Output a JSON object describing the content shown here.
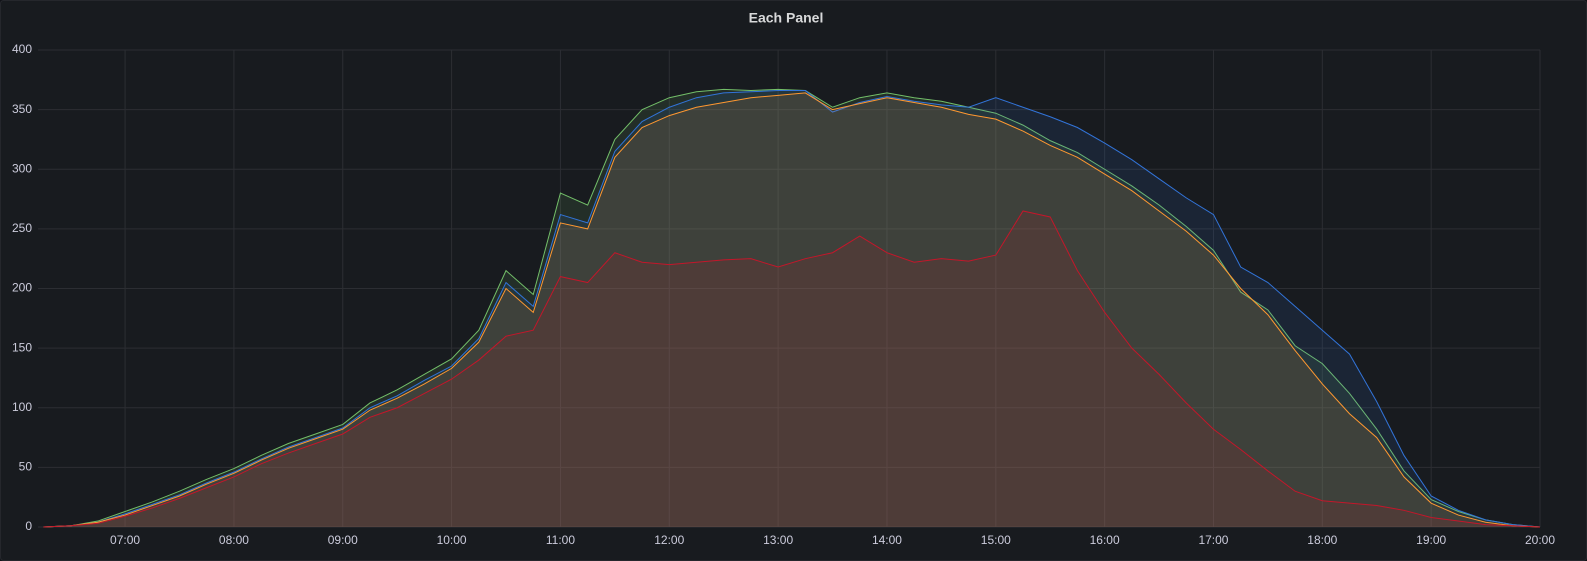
{
  "chart_data": {
    "type": "area",
    "title": "Each Panel",
    "x": [
      "06:15",
      "06:30",
      "06:45",
      "07:00",
      "07:15",
      "07:30",
      "07:45",
      "08:00",
      "08:15",
      "08:30",
      "08:45",
      "09:00",
      "09:15",
      "09:30",
      "09:45",
      "10:00",
      "10:15",
      "10:30",
      "10:45",
      "11:00",
      "11:15",
      "11:30",
      "11:45",
      "12:00",
      "12:15",
      "12:30",
      "12:45",
      "13:00",
      "13:15",
      "13:30",
      "13:45",
      "14:00",
      "14:15",
      "14:30",
      "14:45",
      "15:00",
      "15:15",
      "15:30",
      "15:45",
      "16:00",
      "16:15",
      "16:30",
      "16:45",
      "17:00",
      "17:15",
      "17:30",
      "17:45",
      "18:00",
      "18:15",
      "18:30",
      "18:45",
      "19:00",
      "19:15",
      "19:30",
      "19:45",
      "20:00"
    ],
    "xlim": [
      "06:12",
      "20:00"
    ],
    "xticks": [
      "07:00",
      "08:00",
      "09:00",
      "10:00",
      "11:00",
      "12:00",
      "13:00",
      "14:00",
      "15:00",
      "16:00",
      "17:00",
      "18:00",
      "19:00",
      "20:00"
    ],
    "ylim": [
      0,
      400
    ],
    "yticks": [
      0,
      50,
      100,
      150,
      200,
      250,
      300,
      350,
      400
    ],
    "grid": true,
    "series": [
      {
        "color": "#73bf69",
        "values": [
          0,
          1,
          5,
          13,
          21,
          30,
          40,
          49,
          60,
          70,
          78,
          86,
          104,
          115,
          128,
          141,
          165,
          215,
          195,
          280,
          270,
          325,
          350,
          360,
          365,
          367,
          366,
          367,
          366,
          352,
          360,
          364,
          360,
          357,
          352,
          347,
          337,
          324,
          314,
          300,
          286,
          270,
          252,
          232,
          197,
          182,
          152,
          137,
          112,
          82,
          47,
          23,
          13,
          6,
          2,
          0
        ]
      },
      {
        "color": "#3274d9",
        "values": [
          0,
          1,
          4,
          11,
          19,
          27,
          37,
          46,
          57,
          67,
          75,
          83,
          100,
          110,
          123,
          135,
          158,
          205,
          185,
          262,
          255,
          315,
          340,
          352,
          360,
          364,
          365,
          366,
          366,
          348,
          356,
          361,
          357,
          354,
          352,
          360,
          352,
          344,
          335,
          322,
          308,
          292,
          276,
          262,
          218,
          205,
          185,
          165,
          145,
          105,
          60,
          26,
          14,
          6,
          2,
          0
        ]
      },
      {
        "color": "#ff9830",
        "values": [
          0,
          1,
          4,
          10,
          18,
          26,
          36,
          45,
          56,
          66,
          74,
          82,
          98,
          108,
          120,
          133,
          155,
          200,
          180,
          255,
          250,
          310,
          335,
          345,
          352,
          356,
          360,
          362,
          364,
          350,
          355,
          360,
          356,
          352,
          346,
          342,
          332,
          320,
          310,
          296,
          282,
          265,
          248,
          228,
          200,
          178,
          148,
          120,
          95,
          75,
          42,
          20,
          10,
          4,
          1,
          0
        ]
      },
      {
        "color": "#c4162a",
        "values": [
          0,
          1,
          3,
          9,
          16,
          24,
          33,
          42,
          53,
          62,
          70,
          78,
          92,
          100,
          112,
          124,
          140,
          160,
          165,
          210,
          205,
          230,
          222,
          220,
          222,
          224,
          225,
          218,
          225,
          230,
          244,
          230,
          222,
          225,
          223,
          228,
          265,
          260,
          215,
          180,
          150,
          128,
          104,
          82,
          65,
          47,
          30,
          22,
          20,
          18,
          14,
          8,
          5,
          2,
          1,
          0
        ]
      }
    ]
  }
}
